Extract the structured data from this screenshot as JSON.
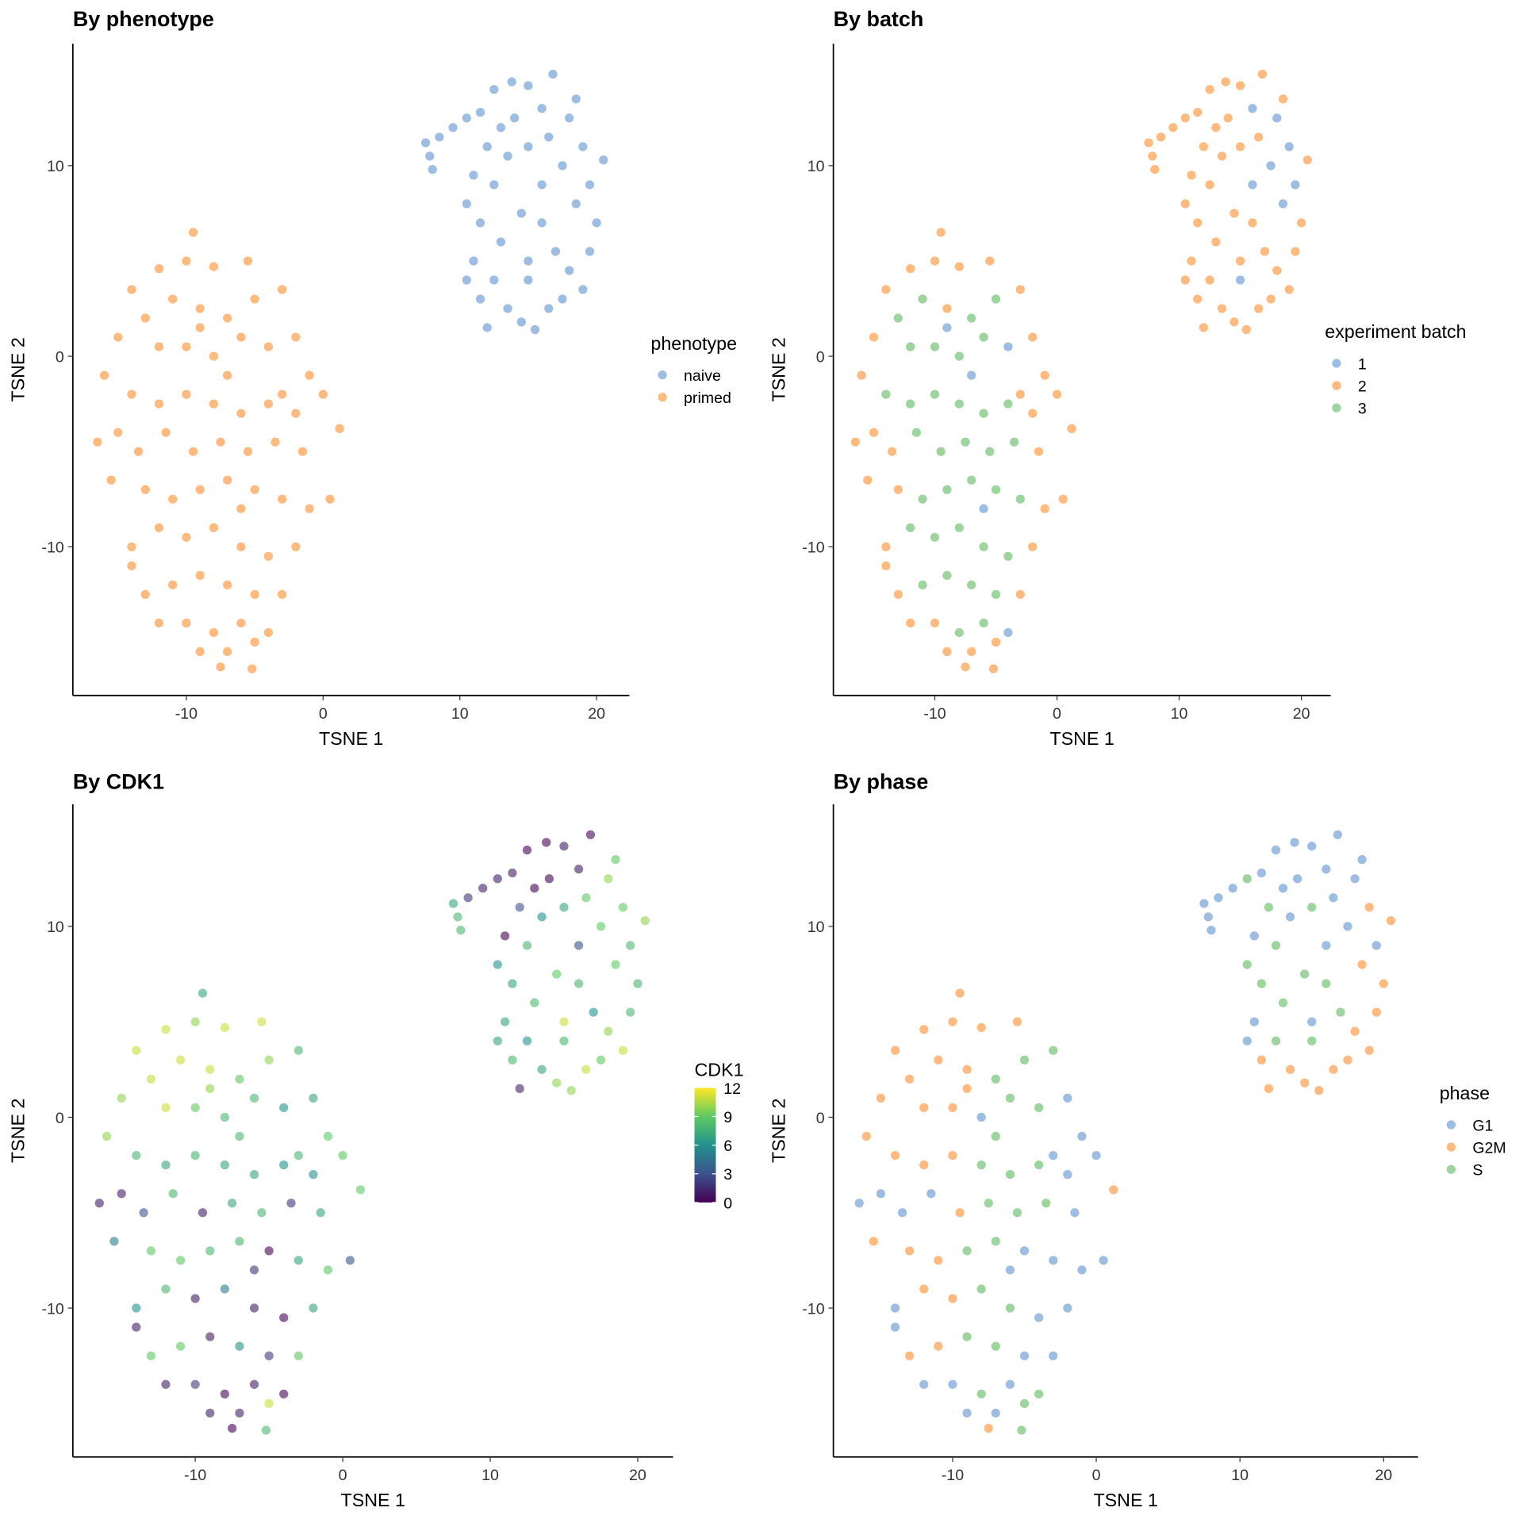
{
  "colors": {
    "blue": "#5E91CF",
    "orange": "#FF8C2A",
    "green": "#5DB85D"
  },
  "chart_data": [
    {
      "type": "scatter",
      "title": "By phenotype",
      "xlabel": "TSNE 1",
      "ylabel": "TSNE 2",
      "color_by": "phenotype",
      "legend_title": "phenotype",
      "legend": [
        "naive",
        "primed"
      ],
      "legend_placement": "right",
      "grid": false
    },
    {
      "type": "scatter",
      "title": "By batch",
      "xlabel": "TSNE 1",
      "ylabel": "TSNE 2",
      "color_by": "batch",
      "legend_title": "experiment batch",
      "legend": [
        "1",
        "2",
        "3"
      ],
      "legend_placement": "right",
      "grid": false
    },
    {
      "type": "scatter",
      "title": "By CDK1",
      "xlabel": "TSNE 1",
      "ylabel": "TSNE 2",
      "color_by": "cdk1",
      "legend_title": "CDK1",
      "colorscale": "viridis",
      "color_range": [
        0,
        12
      ],
      "legend": [
        "12",
        "9",
        "6",
        "3",
        "0"
      ],
      "legend_placement": "right",
      "grid": false
    },
    {
      "type": "scatter",
      "title": "By phase",
      "xlabel": "TSNE 1",
      "ylabel": "TSNE 2",
      "color_by": "phase",
      "legend_title": "phase",
      "legend": [
        "G1",
        "G2M",
        "S"
      ],
      "legend_placement": "right",
      "grid": false
    }
  ],
  "axes": {
    "xlim": [
      -18.3,
      22.4
    ],
    "ylim": [
      -17.8,
      16.4
    ],
    "xticks": [
      "-10",
      "0",
      "10",
      "20"
    ],
    "yticks": [
      "-10",
      "0",
      "10"
    ]
  },
  "point_fields": [
    "x",
    "y",
    "batch",
    "phase",
    "cdk1"
  ],
  "cells": {
    "naive": [
      [
        7.5,
        11.2,
        2,
        "G1",
        7
      ],
      [
        7.8,
        10.5,
        2,
        "G1",
        8
      ],
      [
        8,
        9.8,
        2,
        "G1",
        8
      ],
      [
        8.5,
        11.5,
        2,
        "G1",
        2
      ],
      [
        9.5,
        12,
        2,
        "G1",
        1
      ],
      [
        10.5,
        12.5,
        2,
        "S",
        1
      ],
      [
        11.5,
        12.8,
        2,
        "G1",
        1
      ],
      [
        12.5,
        14,
        2,
        "G1",
        0
      ],
      [
        13.8,
        14.4,
        2,
        "G1",
        0
      ],
      [
        15,
        14.2,
        2,
        "G1",
        1
      ],
      [
        16.8,
        14.8,
        2,
        "G1",
        0
      ],
      [
        16,
        13,
        1,
        "G1",
        1
      ],
      [
        14,
        12.5,
        2,
        "G1",
        0
      ],
      [
        12,
        11,
        2,
        "S",
        3
      ],
      [
        11,
        9.5,
        2,
        "G1",
        0
      ],
      [
        10.5,
        8,
        2,
        "S",
        6
      ],
      [
        11.5,
        7,
        2,
        "S",
        7
      ],
      [
        12.5,
        9,
        2,
        "S",
        8
      ],
      [
        13.5,
        10.5,
        2,
        "G1",
        6
      ],
      [
        15,
        11,
        2,
        "S",
        7
      ],
      [
        16.5,
        11.5,
        2,
        "G1",
        9
      ],
      [
        18,
        12.5,
        1,
        "G1",
        10
      ],
      [
        19,
        11,
        1,
        "G2M",
        9
      ],
      [
        20.5,
        10.3,
        2,
        "G2M",
        10
      ],
      [
        19.5,
        9,
        1,
        "G1",
        8
      ],
      [
        18.5,
        8,
        1,
        "G2M",
        9
      ],
      [
        20,
        7,
        2,
        "G2M",
        8
      ],
      [
        19.5,
        5.5,
        2,
        "G2M",
        8
      ],
      [
        18,
        4.5,
        2,
        "G2M",
        10
      ],
      [
        17,
        5.5,
        2,
        "S",
        6
      ],
      [
        16,
        7,
        2,
        "S",
        8
      ],
      [
        14.5,
        7.5,
        2,
        "S",
        9
      ],
      [
        13,
        6,
        2,
        "S",
        8
      ],
      [
        11,
        5,
        2,
        "G1",
        7
      ],
      [
        10.5,
        4,
        2,
        "G1",
        7
      ],
      [
        11.5,
        3,
        2,
        "G2M",
        8
      ],
      [
        12.5,
        4,
        2,
        "S",
        6
      ],
      [
        13.5,
        2.5,
        2,
        "G2M",
        7
      ],
      [
        14.5,
        1.8,
        2,
        "G2M",
        10
      ],
      [
        15.5,
        1.4,
        2,
        "G2M",
        10
      ],
      [
        16.5,
        2.5,
        2,
        "G2M",
        11
      ],
      [
        17.5,
        3,
        2,
        "G2M",
        9
      ],
      [
        12,
        1.5,
        2,
        "G2M",
        1
      ],
      [
        15,
        4,
        1,
        "S",
        8
      ],
      [
        16,
        9,
        1,
        "G1",
        3
      ],
      [
        17.5,
        10,
        1,
        "G1",
        9
      ],
      [
        13,
        12,
        2,
        "G1",
        0
      ],
      [
        18.5,
        13.5,
        2,
        "G1",
        9
      ],
      [
        15,
        5,
        2,
        "G1",
        11
      ],
      [
        19,
        3.5,
        2,
        "G2M",
        11
      ]
    ],
    "primed": [
      [
        -9.5,
        6.5,
        2,
        "G2M",
        7
      ],
      [
        -10,
        5,
        2,
        "G2M",
        10
      ],
      [
        -12,
        4.6,
        2,
        "G2M",
        11
      ],
      [
        -8,
        4.7,
        2,
        "G2M",
        11
      ],
      [
        -5.5,
        5,
        2,
        "G2M",
        11
      ],
      [
        -14,
        3.5,
        2,
        "G2M",
        11
      ],
      [
        -11,
        3,
        3,
        "G2M",
        11
      ],
      [
        -9,
        2.5,
        2,
        "G2M",
        11
      ],
      [
        -13,
        2,
        3,
        "G2M",
        11
      ],
      [
        -7,
        2,
        3,
        "S",
        9
      ],
      [
        -5,
        3,
        3,
        "S",
        10
      ],
      [
        -3,
        3.5,
        2,
        "S",
        8
      ],
      [
        -15,
        1,
        2,
        "G2M",
        10
      ],
      [
        -12,
        0.5,
        3,
        "G2M",
        11
      ],
      [
        -10,
        0.5,
        3,
        "G2M",
        9
      ],
      [
        -8,
        0,
        3,
        "G1",
        8
      ],
      [
        -6,
        1,
        3,
        "S",
        8
      ],
      [
        -4,
        0.5,
        1,
        "S",
        6
      ],
      [
        -2,
        1,
        2,
        "G1",
        7
      ],
      [
        -1,
        -1,
        2,
        "G1",
        9
      ],
      [
        0,
        -2,
        2,
        "G1",
        9
      ],
      [
        1.2,
        -3.8,
        2,
        "G2M",
        9
      ],
      [
        -16,
        -1,
        2,
        "G2M",
        10
      ],
      [
        -14,
        -2,
        3,
        "G2M",
        8
      ],
      [
        -12,
        -2.5,
        3,
        "G2M",
        7
      ],
      [
        -10,
        -2,
        3,
        "G2M",
        8
      ],
      [
        -8,
        -2.5,
        3,
        "S",
        7
      ],
      [
        -6,
        -3,
        3,
        "S",
        7
      ],
      [
        -4,
        -2.5,
        3,
        "S",
        6
      ],
      [
        -2,
        -3,
        2,
        "G1",
        6
      ],
      [
        -16.5,
        -4.5,
        2,
        "G1",
        1
      ],
      [
        -15,
        -4,
        2,
        "G1",
        1
      ],
      [
        -13.5,
        -5,
        2,
        "G1",
        3
      ],
      [
        -11.5,
        -4,
        3,
        "G1",
        8
      ],
      [
        -9.5,
        -5,
        3,
        "G2M",
        1
      ],
      [
        -7.5,
        -4.5,
        3,
        "S",
        7
      ],
      [
        -5.5,
        -5,
        3,
        "S",
        8
      ],
      [
        -3.5,
        -4.5,
        3,
        "S",
        2
      ],
      [
        -1.5,
        -5,
        2,
        "G1",
        7
      ],
      [
        0.5,
        -7.5,
        2,
        "G1",
        3
      ],
      [
        -15.5,
        -6.5,
        2,
        "G2M",
        5
      ],
      [
        -13,
        -7,
        2,
        "G2M",
        9
      ],
      [
        -11,
        -7.5,
        3,
        "G2M",
        9
      ],
      [
        -9,
        -7,
        3,
        "S",
        8
      ],
      [
        -7,
        -6.5,
        3,
        "S",
        8
      ],
      [
        -5,
        -7,
        3,
        "G1",
        0
      ],
      [
        -3,
        -7.5,
        3,
        "G1",
        7
      ],
      [
        -1,
        -8,
        2,
        "G1",
        9
      ],
      [
        -14,
        -10,
        2,
        "G1",
        6
      ],
      [
        -12,
        -9,
        3,
        "G2M",
        8
      ],
      [
        -10,
        -9.5,
        3,
        "G2M",
        1
      ],
      [
        -8,
        -9,
        3,
        "S",
        5
      ],
      [
        -6,
        -10,
        3,
        "S",
        1
      ],
      [
        -4,
        -10.5,
        3,
        "G1",
        0
      ],
      [
        -2,
        -10,
        2,
        "G1",
        7
      ],
      [
        -13,
        -12.5,
        2,
        "G2M",
        9
      ],
      [
        -11,
        -12,
        3,
        "G2M",
        9
      ],
      [
        -9,
        -11.5,
        3,
        "S",
        1
      ],
      [
        -7,
        -12,
        3,
        "S",
        6
      ],
      [
        -5,
        -12.5,
        3,
        "G1",
        2
      ],
      [
        -3,
        -12.5,
        2,
        "G1",
        9
      ],
      [
        -12,
        -14,
        2,
        "G1",
        1
      ],
      [
        -10,
        -14,
        2,
        "G1",
        2
      ],
      [
        -8,
        -14.5,
        3,
        "S",
        0
      ],
      [
        -6,
        -14,
        3,
        "G1",
        1
      ],
      [
        -4,
        -14.5,
        1,
        "S",
        0
      ],
      [
        -9,
        -15.5,
        2,
        "G1",
        1
      ],
      [
        -7,
        -15.5,
        2,
        "G1",
        1
      ],
      [
        -5,
        -15,
        2,
        "S",
        11
      ],
      [
        -7.5,
        -16.3,
        2,
        "G2M",
        0
      ],
      [
        -5.2,
        -16.4,
        2,
        "S",
        8
      ],
      [
        -14,
        -11,
        2,
        "G1",
        1
      ],
      [
        -6,
        -8,
        1,
        "G1",
        2
      ],
      [
        -9,
        1.5,
        1,
        "G2M",
        10
      ],
      [
        -7,
        -1,
        1,
        "S",
        8
      ],
      [
        -3,
        -2,
        2,
        "G1",
        8
      ]
    ]
  }
}
